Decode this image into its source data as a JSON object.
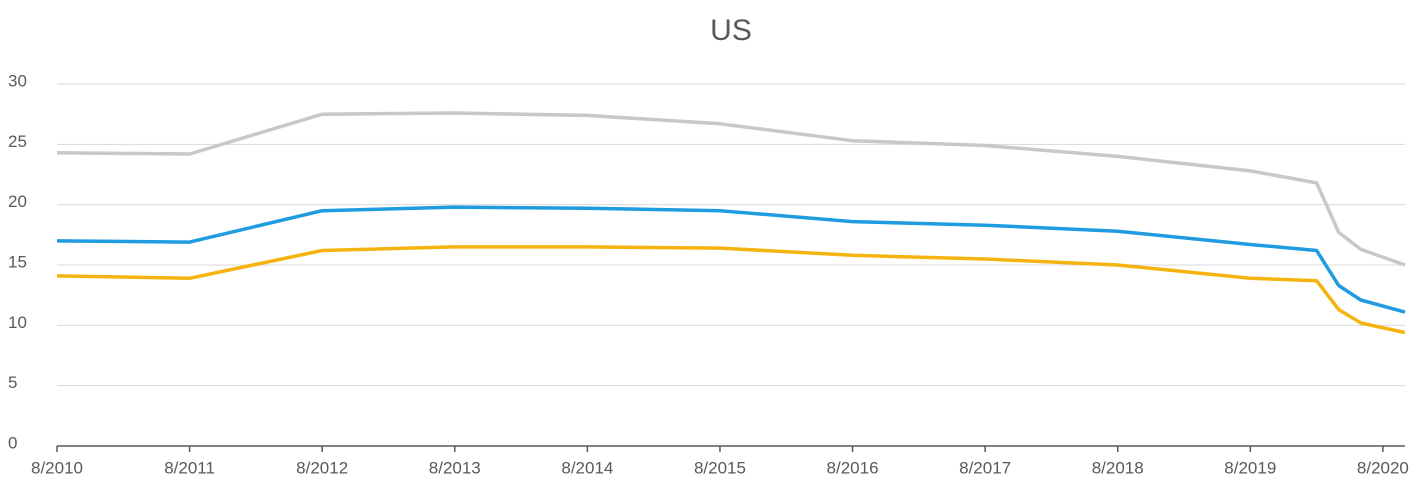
{
  "chart_data": {
    "type": "line",
    "title": "US",
    "x": [
      "8/2010",
      "8/2011",
      "8/2012",
      "8/2013",
      "8/2014",
      "8/2015",
      "8/2016",
      "8/2017",
      "8/2018",
      "8/2019",
      "2/2020",
      "4/2020",
      "6/2020",
      "10/2020"
    ],
    "series": [
      {
        "color": "#c8c8c8",
        "values": [
          24.3,
          24.2,
          27.5,
          27.6,
          27.4,
          26.7,
          25.3,
          24.9,
          24.0,
          22.8,
          21.8,
          17.7,
          16.3,
          15.0
        ]
      },
      {
        "color": "#1f9be0",
        "values": [
          17.0,
          16.9,
          19.5,
          19.8,
          19.7,
          19.5,
          18.6,
          18.3,
          17.8,
          16.7,
          16.2,
          13.3,
          12.1,
          11.1
        ]
      },
      {
        "color": "#f5b30f",
        "values": [
          14.1,
          13.9,
          16.2,
          16.5,
          16.5,
          16.4,
          15.8,
          15.5,
          15.0,
          13.9,
          13.7,
          11.3,
          10.2,
          9.4
        ]
      }
    ],
    "xlim": [
      "8/2010",
      "10/2020"
    ],
    "xticks": [
      "8/2010",
      "8/2011",
      "8/2012",
      "8/2013",
      "8/2014",
      "8/2015",
      "8/2016",
      "8/2017",
      "8/2018",
      "8/2019",
      "8/2020"
    ],
    "ylim": [
      0,
      30
    ],
    "yticks": [
      0,
      5,
      10,
      15,
      20,
      25,
      30
    ],
    "grid": true
  }
}
